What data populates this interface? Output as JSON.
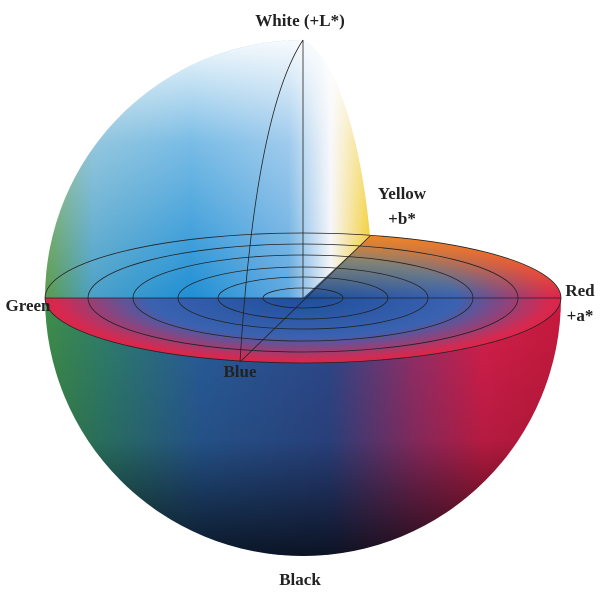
{
  "axes": {
    "white": "White (+L*)",
    "yellow": "Yellow",
    "plus_b": "+b*",
    "red": "Red",
    "plus_a": "+a*",
    "green": "Green",
    "blue": "Blue",
    "black": "Black"
  }
}
